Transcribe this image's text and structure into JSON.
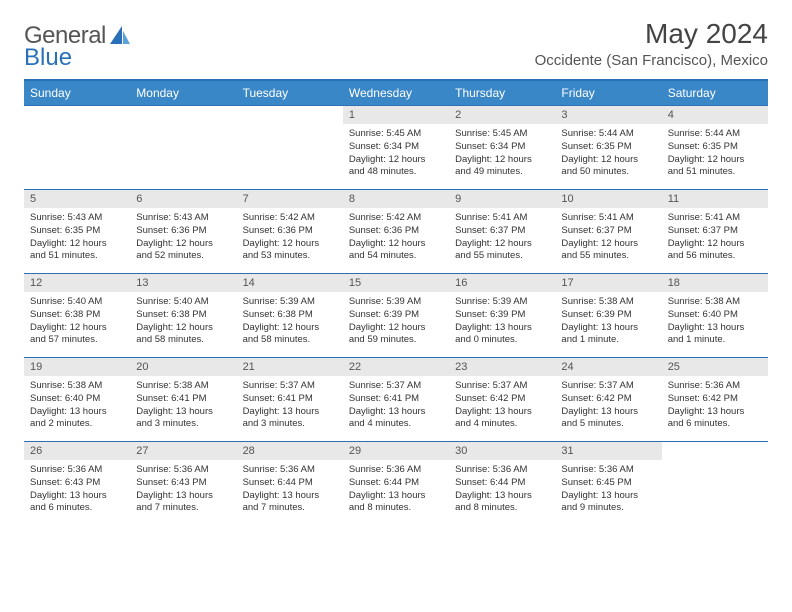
{
  "logo": {
    "text1": "General",
    "text2": "Blue"
  },
  "header": {
    "month_title": "May 2024",
    "location": "Occidente (San Francisco), Mexico"
  },
  "colors": {
    "header_bg": "#3a87c8",
    "header_border": "#2a70b8",
    "daynum_bg": "#e8e8e8",
    "text": "#333333"
  },
  "weekdays": [
    "Sunday",
    "Monday",
    "Tuesday",
    "Wednesday",
    "Thursday",
    "Friday",
    "Saturday"
  ],
  "weeks": [
    [
      {
        "empty": true
      },
      {
        "empty": true
      },
      {
        "empty": true
      },
      {
        "num": "1",
        "sunrise": "Sunrise: 5:45 AM",
        "sunset": "Sunset: 6:34 PM",
        "day1": "Daylight: 12 hours",
        "day2": "and 48 minutes."
      },
      {
        "num": "2",
        "sunrise": "Sunrise: 5:45 AM",
        "sunset": "Sunset: 6:34 PM",
        "day1": "Daylight: 12 hours",
        "day2": "and 49 minutes."
      },
      {
        "num": "3",
        "sunrise": "Sunrise: 5:44 AM",
        "sunset": "Sunset: 6:35 PM",
        "day1": "Daylight: 12 hours",
        "day2": "and 50 minutes."
      },
      {
        "num": "4",
        "sunrise": "Sunrise: 5:44 AM",
        "sunset": "Sunset: 6:35 PM",
        "day1": "Daylight: 12 hours",
        "day2": "and 51 minutes."
      }
    ],
    [
      {
        "num": "5",
        "sunrise": "Sunrise: 5:43 AM",
        "sunset": "Sunset: 6:35 PM",
        "day1": "Daylight: 12 hours",
        "day2": "and 51 minutes."
      },
      {
        "num": "6",
        "sunrise": "Sunrise: 5:43 AM",
        "sunset": "Sunset: 6:36 PM",
        "day1": "Daylight: 12 hours",
        "day2": "and 52 minutes."
      },
      {
        "num": "7",
        "sunrise": "Sunrise: 5:42 AM",
        "sunset": "Sunset: 6:36 PM",
        "day1": "Daylight: 12 hours",
        "day2": "and 53 minutes."
      },
      {
        "num": "8",
        "sunrise": "Sunrise: 5:42 AM",
        "sunset": "Sunset: 6:36 PM",
        "day1": "Daylight: 12 hours",
        "day2": "and 54 minutes."
      },
      {
        "num": "9",
        "sunrise": "Sunrise: 5:41 AM",
        "sunset": "Sunset: 6:37 PM",
        "day1": "Daylight: 12 hours",
        "day2": "and 55 minutes."
      },
      {
        "num": "10",
        "sunrise": "Sunrise: 5:41 AM",
        "sunset": "Sunset: 6:37 PM",
        "day1": "Daylight: 12 hours",
        "day2": "and 55 minutes."
      },
      {
        "num": "11",
        "sunrise": "Sunrise: 5:41 AM",
        "sunset": "Sunset: 6:37 PM",
        "day1": "Daylight: 12 hours",
        "day2": "and 56 minutes."
      }
    ],
    [
      {
        "num": "12",
        "sunrise": "Sunrise: 5:40 AM",
        "sunset": "Sunset: 6:38 PM",
        "day1": "Daylight: 12 hours",
        "day2": "and 57 minutes."
      },
      {
        "num": "13",
        "sunrise": "Sunrise: 5:40 AM",
        "sunset": "Sunset: 6:38 PM",
        "day1": "Daylight: 12 hours",
        "day2": "and 58 minutes."
      },
      {
        "num": "14",
        "sunrise": "Sunrise: 5:39 AM",
        "sunset": "Sunset: 6:38 PM",
        "day1": "Daylight: 12 hours",
        "day2": "and 58 minutes."
      },
      {
        "num": "15",
        "sunrise": "Sunrise: 5:39 AM",
        "sunset": "Sunset: 6:39 PM",
        "day1": "Daylight: 12 hours",
        "day2": "and 59 minutes."
      },
      {
        "num": "16",
        "sunrise": "Sunrise: 5:39 AM",
        "sunset": "Sunset: 6:39 PM",
        "day1": "Daylight: 13 hours",
        "day2": "and 0 minutes."
      },
      {
        "num": "17",
        "sunrise": "Sunrise: 5:38 AM",
        "sunset": "Sunset: 6:39 PM",
        "day1": "Daylight: 13 hours",
        "day2": "and 1 minute."
      },
      {
        "num": "18",
        "sunrise": "Sunrise: 5:38 AM",
        "sunset": "Sunset: 6:40 PM",
        "day1": "Daylight: 13 hours",
        "day2": "and 1 minute."
      }
    ],
    [
      {
        "num": "19",
        "sunrise": "Sunrise: 5:38 AM",
        "sunset": "Sunset: 6:40 PM",
        "day1": "Daylight: 13 hours",
        "day2": "and 2 minutes."
      },
      {
        "num": "20",
        "sunrise": "Sunrise: 5:38 AM",
        "sunset": "Sunset: 6:41 PM",
        "day1": "Daylight: 13 hours",
        "day2": "and 3 minutes."
      },
      {
        "num": "21",
        "sunrise": "Sunrise: 5:37 AM",
        "sunset": "Sunset: 6:41 PM",
        "day1": "Daylight: 13 hours",
        "day2": "and 3 minutes."
      },
      {
        "num": "22",
        "sunrise": "Sunrise: 5:37 AM",
        "sunset": "Sunset: 6:41 PM",
        "day1": "Daylight: 13 hours",
        "day2": "and 4 minutes."
      },
      {
        "num": "23",
        "sunrise": "Sunrise: 5:37 AM",
        "sunset": "Sunset: 6:42 PM",
        "day1": "Daylight: 13 hours",
        "day2": "and 4 minutes."
      },
      {
        "num": "24",
        "sunrise": "Sunrise: 5:37 AM",
        "sunset": "Sunset: 6:42 PM",
        "day1": "Daylight: 13 hours",
        "day2": "and 5 minutes."
      },
      {
        "num": "25",
        "sunrise": "Sunrise: 5:36 AM",
        "sunset": "Sunset: 6:42 PM",
        "day1": "Daylight: 13 hours",
        "day2": "and 6 minutes."
      }
    ],
    [
      {
        "num": "26",
        "sunrise": "Sunrise: 5:36 AM",
        "sunset": "Sunset: 6:43 PM",
        "day1": "Daylight: 13 hours",
        "day2": "and 6 minutes."
      },
      {
        "num": "27",
        "sunrise": "Sunrise: 5:36 AM",
        "sunset": "Sunset: 6:43 PM",
        "day1": "Daylight: 13 hours",
        "day2": "and 7 minutes."
      },
      {
        "num": "28",
        "sunrise": "Sunrise: 5:36 AM",
        "sunset": "Sunset: 6:44 PM",
        "day1": "Daylight: 13 hours",
        "day2": "and 7 minutes."
      },
      {
        "num": "29",
        "sunrise": "Sunrise: 5:36 AM",
        "sunset": "Sunset: 6:44 PM",
        "day1": "Daylight: 13 hours",
        "day2": "and 8 minutes."
      },
      {
        "num": "30",
        "sunrise": "Sunrise: 5:36 AM",
        "sunset": "Sunset: 6:44 PM",
        "day1": "Daylight: 13 hours",
        "day2": "and 8 minutes."
      },
      {
        "num": "31",
        "sunrise": "Sunrise: 5:36 AM",
        "sunset": "Sunset: 6:45 PM",
        "day1": "Daylight: 13 hours",
        "day2": "and 9 minutes."
      },
      {
        "empty": true
      }
    ]
  ]
}
